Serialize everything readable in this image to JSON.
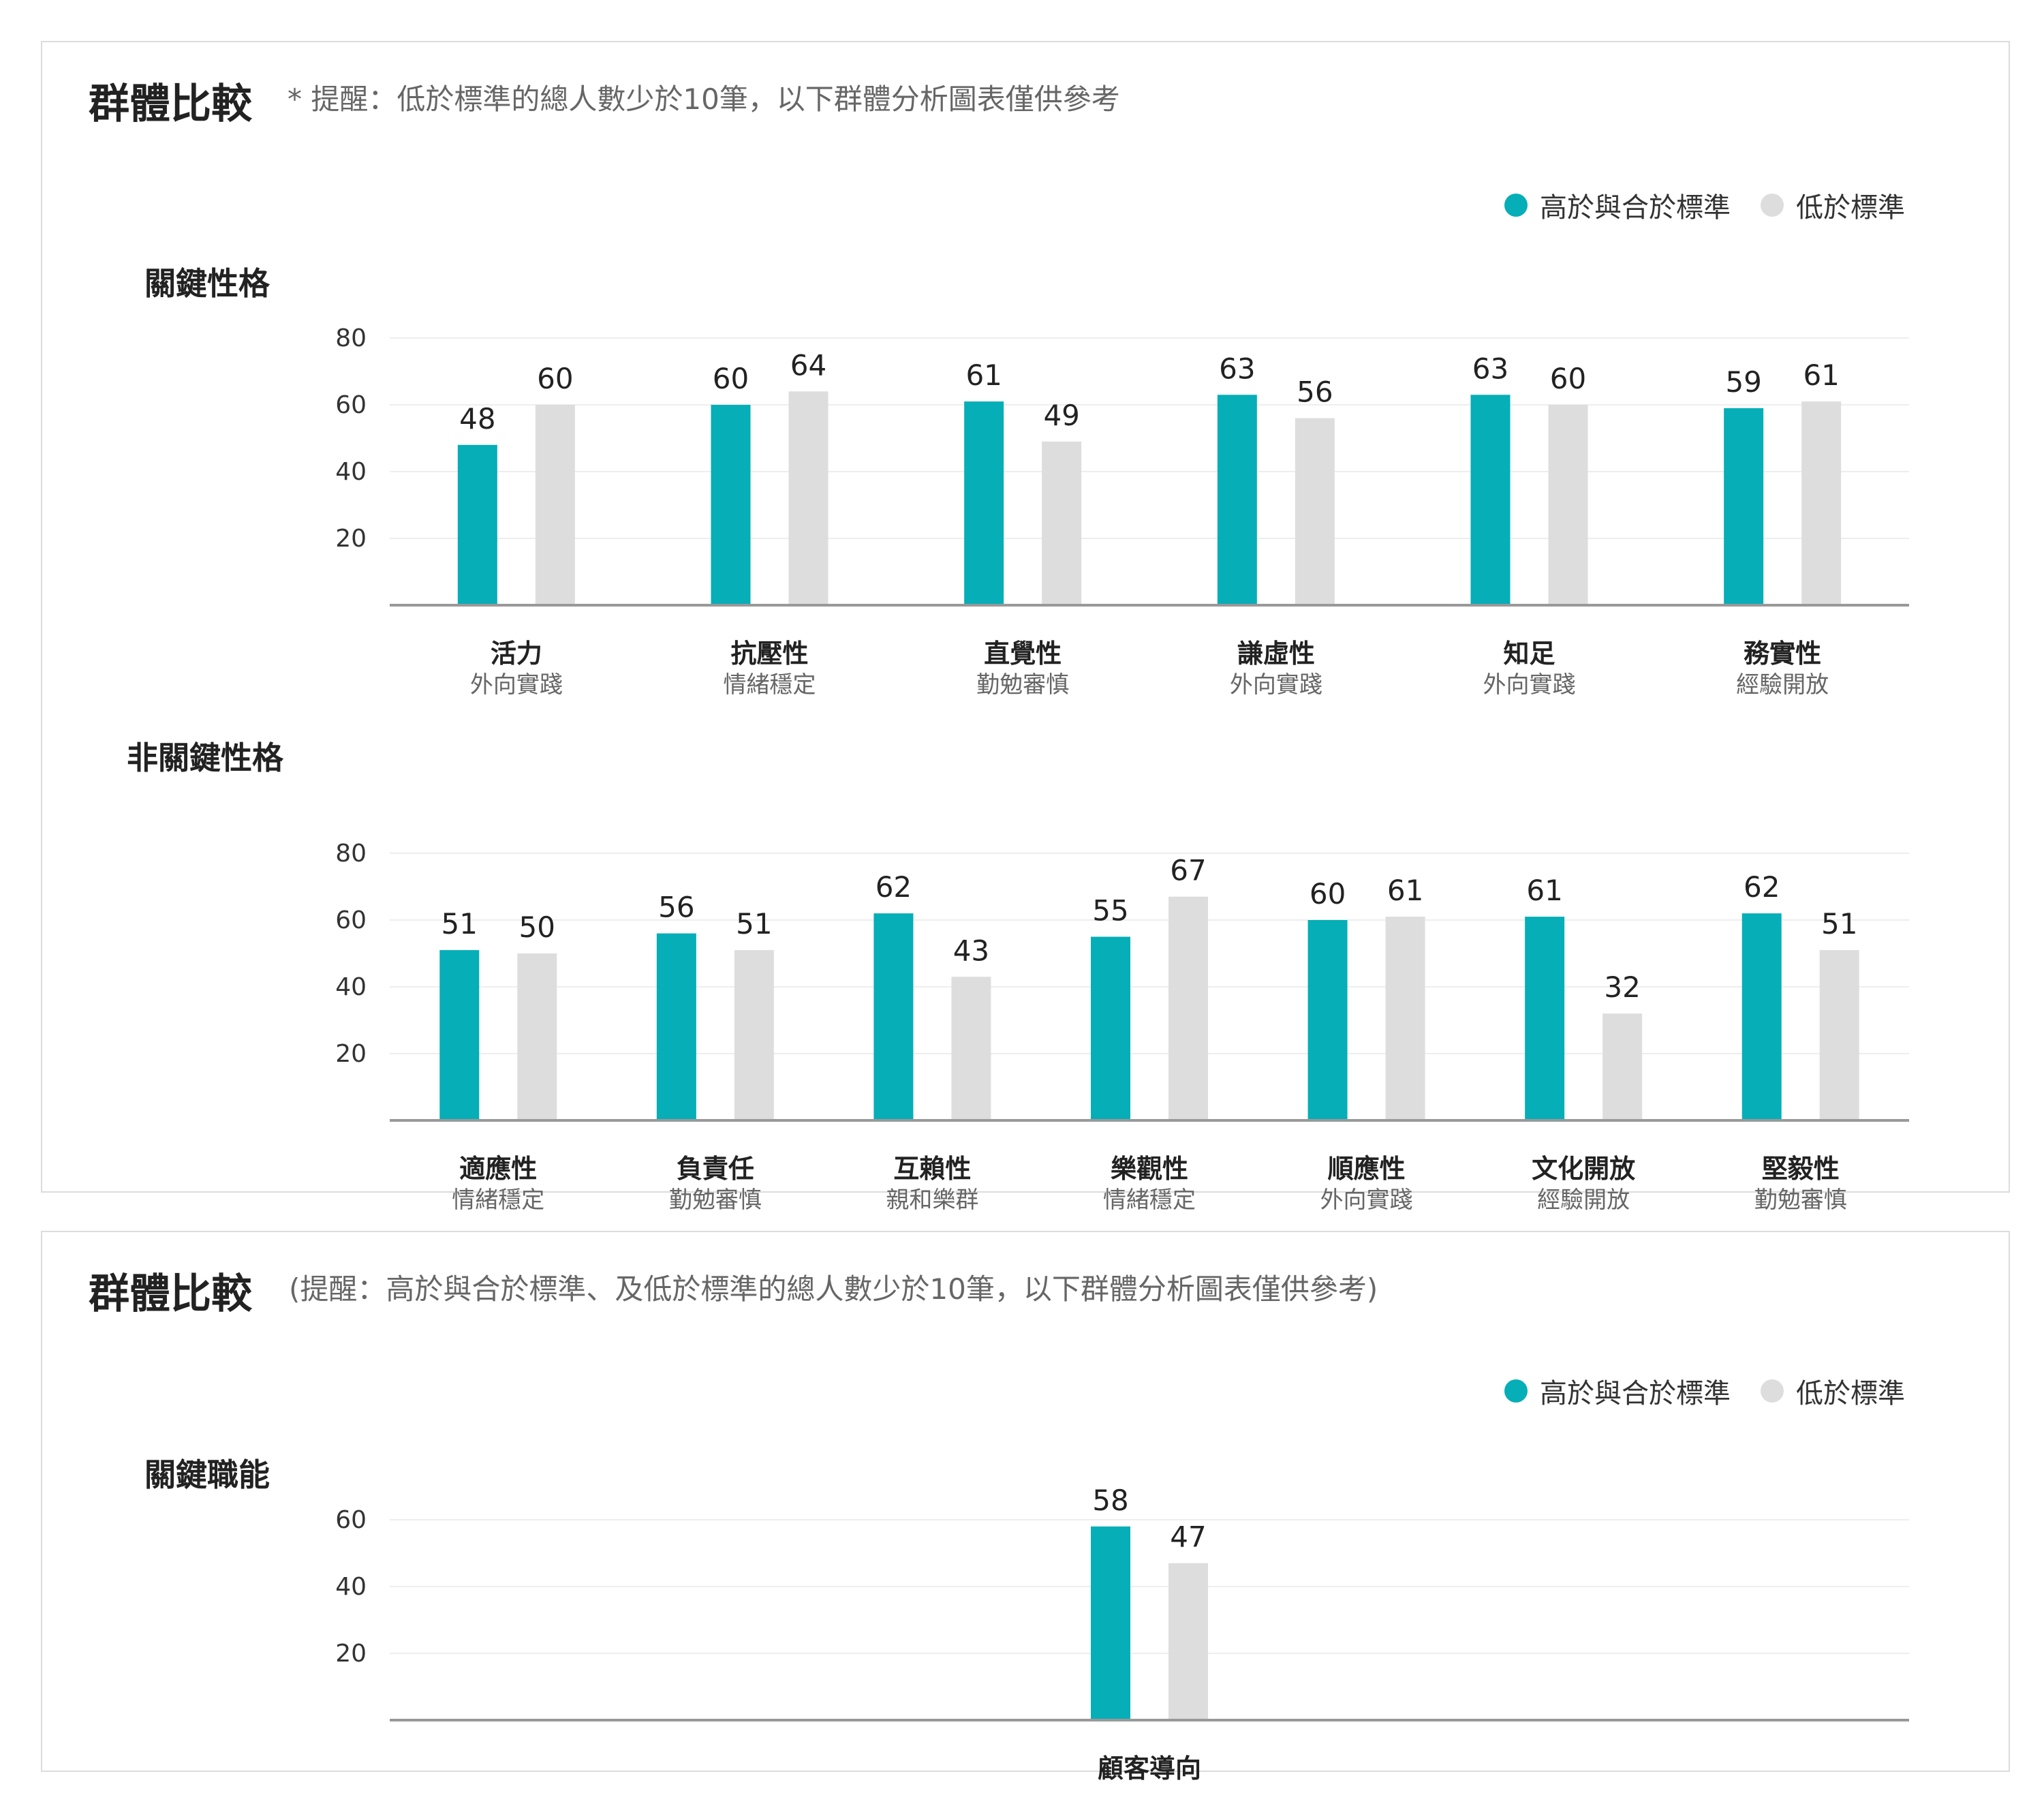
{
  "colors": {
    "above": "#06aeb7",
    "below": "#dddddd",
    "axis": "#999999",
    "grid": "#eeeeee"
  },
  "card1": {
    "title": "群體比較",
    "note": "* 提醒：低於標準的總人數少於10筆，以下群體分析圖表僅供參考",
    "legend": {
      "above": "高於與合於標準",
      "below": "低於標準"
    }
  },
  "card2": {
    "title": "群體比較",
    "note": "(提醒：高於與合於標準、及低於標準的總人數少於10筆，以下群體分析圖表僅供參考)",
    "legend": {
      "above": "高於與合於標準",
      "below": "低於標準"
    }
  },
  "chart_data": [
    {
      "type": "bar",
      "title": "關鍵性格",
      "yticks": [
        20,
        40,
        60,
        80
      ],
      "ylim": [
        0,
        80
      ],
      "categories": [
        "活力",
        "抗壓性",
        "直覺性",
        "謙虛性",
        "知足",
        "務實性"
      ],
      "subcategories": [
        "外向實踐",
        "情緒穩定",
        "勤勉審慎",
        "外向實踐",
        "外向實踐",
        "經驗開放"
      ],
      "series": [
        {
          "name": "高於與合於標準",
          "values": [
            48,
            60,
            61,
            63,
            63,
            59
          ]
        },
        {
          "name": "低於標準",
          "values": [
            60,
            64,
            49,
            56,
            60,
            61
          ]
        }
      ]
    },
    {
      "type": "bar",
      "title": "非關鍵性格",
      "yticks": [
        20,
        40,
        60,
        80
      ],
      "ylim": [
        0,
        80
      ],
      "categories": [
        "適應性",
        "負責任",
        "互賴性",
        "樂觀性",
        "順應性",
        "文化開放",
        "堅毅性"
      ],
      "subcategories": [
        "情緒穩定",
        "勤勉審慎",
        "親和樂群",
        "情緒穩定",
        "外向實踐",
        "經驗開放",
        "勤勉審慎"
      ],
      "series": [
        {
          "name": "高於與合於標準",
          "values": [
            51,
            56,
            62,
            55,
            60,
            61,
            62
          ]
        },
        {
          "name": "低於標準",
          "values": [
            50,
            51,
            43,
            67,
            61,
            32,
            51
          ]
        }
      ]
    },
    {
      "type": "bar",
      "title": "關鍵職能",
      "yticks": [
        20,
        40,
        60
      ],
      "ylim": [
        0,
        60
      ],
      "categories": [
        "顧客導向"
      ],
      "subcategories": [
        ""
      ],
      "series": [
        {
          "name": "高於與合於標準",
          "values": [
            58
          ]
        },
        {
          "name": "低於標準",
          "values": [
            47
          ]
        }
      ]
    }
  ]
}
